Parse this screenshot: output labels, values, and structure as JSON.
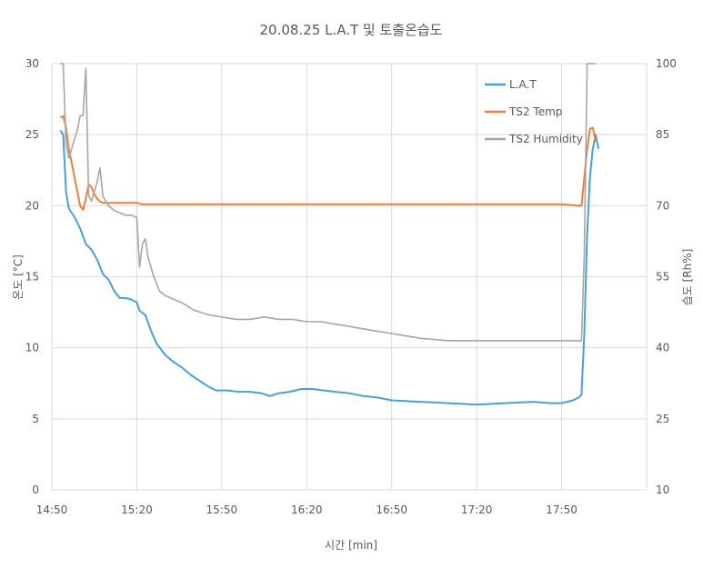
{
  "chart_data": {
    "type": "line",
    "title": "20.08.25 L.A.T 및 토출온습도",
    "xlabel": "시간 [min]",
    "ylabel": "온도 [°C]",
    "y2label": "습도 [Rh%]",
    "x_ticks": [
      "14:50",
      "15:20",
      "15:50",
      "16:20",
      "16:50",
      "17:20",
      "17:50"
    ],
    "x_range_min": [
      0,
      210
    ],
    "ylim": [
      0,
      30
    ],
    "y_ticks": [
      0,
      5,
      10,
      15,
      20,
      25,
      30
    ],
    "y2lim": [
      10,
      100
    ],
    "y2_ticks": [
      10,
      25,
      40,
      55,
      70,
      85,
      100
    ],
    "grid": true,
    "legend_position": "top-right",
    "series": [
      {
        "name": "L.A.T",
        "axis": "left",
        "color": "#4a9fd8",
        "points": [
          [
            3,
            25.3
          ],
          [
            4,
            25
          ],
          [
            5,
            21
          ],
          [
            6,
            19.8
          ],
          [
            8,
            19.2
          ],
          [
            10,
            18.4
          ],
          [
            12,
            17.3
          ],
          [
            14,
            16.9
          ],
          [
            16,
            16.2
          ],
          [
            18,
            15.2
          ],
          [
            20,
            14.8
          ],
          [
            22,
            14
          ],
          [
            24,
            13.5
          ],
          [
            26,
            13.5
          ],
          [
            28,
            13.4
          ],
          [
            30,
            13.2
          ],
          [
            31,
            12.6
          ],
          [
            33,
            12.3
          ],
          [
            35,
            11.2
          ],
          [
            37,
            10.3
          ],
          [
            40,
            9.5
          ],
          [
            43,
            9
          ],
          [
            46,
            8.6
          ],
          [
            49,
            8.1
          ],
          [
            52,
            7.7
          ],
          [
            55,
            7.3
          ],
          [
            58,
            7
          ],
          [
            62,
            7
          ],
          [
            66,
            6.9
          ],
          [
            70,
            6.9
          ],
          [
            74,
            6.8
          ],
          [
            77,
            6.6
          ],
          [
            80,
            6.8
          ],
          [
            84,
            6.9
          ],
          [
            88,
            7.1
          ],
          [
            92,
            7.1
          ],
          [
            96,
            7
          ],
          [
            100,
            6.9
          ],
          [
            105,
            6.8
          ],
          [
            110,
            6.6
          ],
          [
            115,
            6.5
          ],
          [
            120,
            6.3
          ],
          [
            130,
            6.2
          ],
          [
            140,
            6.1
          ],
          [
            150,
            6
          ],
          [
            160,
            6.1
          ],
          [
            170,
            6.2
          ],
          [
            176,
            6.1
          ],
          [
            180,
            6.1
          ],
          [
            184,
            6.3
          ],
          [
            186,
            6.5
          ],
          [
            187,
            6.7
          ],
          [
            188,
            11
          ],
          [
            189,
            18
          ],
          [
            190,
            22
          ],
          [
            191,
            24
          ],
          [
            192,
            25
          ],
          [
            193,
            24
          ]
        ]
      },
      {
        "name": "TS2 Temp",
        "axis": "left",
        "color": "#ee7f3b",
        "points": [
          [
            3,
            26.2
          ],
          [
            4,
            26.3
          ],
          [
            5,
            25.5
          ],
          [
            6,
            24
          ],
          [
            7,
            23
          ],
          [
            8,
            22
          ],
          [
            9,
            21
          ],
          [
            10,
            20
          ],
          [
            11,
            19.7
          ],
          [
            12,
            20.5
          ],
          [
            13,
            21.5
          ],
          [
            14,
            21.3
          ],
          [
            15,
            20.8
          ],
          [
            16,
            20.5
          ],
          [
            17,
            20.3
          ],
          [
            18,
            20.2
          ],
          [
            20,
            20.2
          ],
          [
            25,
            20.2
          ],
          [
            30,
            20.2
          ],
          [
            32,
            20.1
          ],
          [
            40,
            20.1
          ],
          [
            60,
            20.1
          ],
          [
            80,
            20.1
          ],
          [
            100,
            20.1
          ],
          [
            120,
            20.1
          ],
          [
            140,
            20.1
          ],
          [
            160,
            20.1
          ],
          [
            180,
            20.1
          ],
          [
            186,
            20
          ],
          [
            187,
            20
          ],
          [
            188,
            22
          ],
          [
            189,
            24
          ],
          [
            190,
            25.4
          ],
          [
            191,
            25.5
          ],
          [
            192,
            24.5
          ]
        ]
      },
      {
        "name": "TS2 Humidity",
        "axis": "right",
        "color": "#a6a6a6",
        "points": [
          [
            3,
            100
          ],
          [
            4,
            100
          ],
          [
            5,
            83
          ],
          [
            6,
            80
          ],
          [
            8,
            84
          ],
          [
            9,
            86
          ],
          [
            10,
            89
          ],
          [
            11,
            89
          ],
          [
            12,
            99
          ],
          [
            13,
            72
          ],
          [
            14,
            71
          ],
          [
            15,
            73
          ],
          [
            16,
            75
          ],
          [
            17,
            78
          ],
          [
            18,
            72
          ],
          [
            19,
            71
          ],
          [
            20,
            70
          ],
          [
            21,
            69.5
          ],
          [
            22,
            69
          ],
          [
            24,
            68.5
          ],
          [
            26,
            68
          ],
          [
            28,
            68
          ],
          [
            30,
            67.5
          ],
          [
            31,
            57
          ],
          [
            32,
            62
          ],
          [
            33,
            63
          ],
          [
            34,
            59
          ],
          [
            35,
            57
          ],
          [
            36,
            55
          ],
          [
            38,
            52
          ],
          [
            40,
            51
          ],
          [
            42,
            50.5
          ],
          [
            44,
            50
          ],
          [
            46,
            49.5
          ],
          [
            50,
            48
          ],
          [
            55,
            47
          ],
          [
            60,
            46.5
          ],
          [
            65,
            46
          ],
          [
            70,
            46
          ],
          [
            75,
            46.5
          ],
          [
            80,
            46
          ],
          [
            85,
            46
          ],
          [
            90,
            45.5
          ],
          [
            95,
            45.5
          ],
          [
            100,
            45
          ],
          [
            105,
            44.5
          ],
          [
            110,
            44
          ],
          [
            115,
            43.5
          ],
          [
            120,
            43
          ],
          [
            125,
            42.5
          ],
          [
            130,
            42
          ],
          [
            140,
            41.5
          ],
          [
            150,
            41.5
          ],
          [
            160,
            41.5
          ],
          [
            170,
            41.5
          ],
          [
            180,
            41.5
          ],
          [
            186,
            41.5
          ],
          [
            187,
            41.5
          ],
          [
            188,
            60
          ],
          [
            189,
            100
          ],
          [
            190,
            100
          ],
          [
            192,
            100
          ]
        ]
      }
    ]
  }
}
